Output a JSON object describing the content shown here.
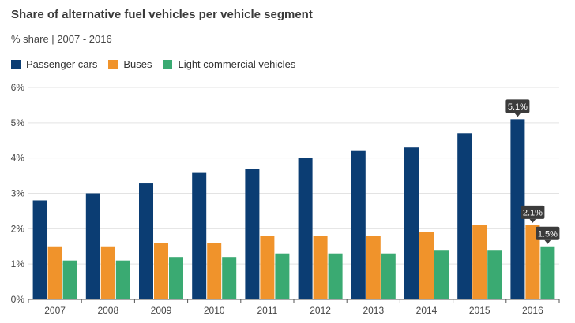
{
  "header": {
    "title": "Share of alternative fuel vehicles per vehicle segment",
    "subtitle": "% share | 2007 - 2016"
  },
  "chart_data": {
    "type": "bar",
    "title": "Share of alternative fuel vehicles per vehicle segment",
    "subtitle": "% share | 2007 - 2016",
    "categories": [
      "2007",
      "2008",
      "2009",
      "2010",
      "2011",
      "2012",
      "2013",
      "2014",
      "2015",
      "2016"
    ],
    "series": [
      {
        "name": "Passenger cars",
        "color": "#0b3d73",
        "values": [
          2.8,
          3.0,
          3.3,
          3.6,
          3.7,
          4.0,
          4.2,
          4.3,
          4.7,
          5.1
        ]
      },
      {
        "name": "Buses",
        "color": "#f0932b",
        "values": [
          1.5,
          1.5,
          1.6,
          1.6,
          1.8,
          1.8,
          1.8,
          1.9,
          2.1,
          2.1
        ]
      },
      {
        "name": "Light commercial vehicles",
        "color": "#3aaa72",
        "values": [
          1.1,
          1.1,
          1.2,
          1.2,
          1.3,
          1.3,
          1.3,
          1.4,
          1.4,
          1.5
        ]
      }
    ],
    "yticks": [
      "0%",
      "1%",
      "2%",
      "3%",
      "4%",
      "5%",
      "6%"
    ],
    "ylim": [
      0,
      6
    ],
    "grid": true,
    "legend_position": "top-left",
    "annotations": [
      {
        "series": 0,
        "category": "2016",
        "label": "5.1%"
      },
      {
        "series": 1,
        "category": "2016",
        "label": "2.1%"
      },
      {
        "series": 2,
        "category": "2016",
        "label": "1.5%"
      }
    ]
  }
}
